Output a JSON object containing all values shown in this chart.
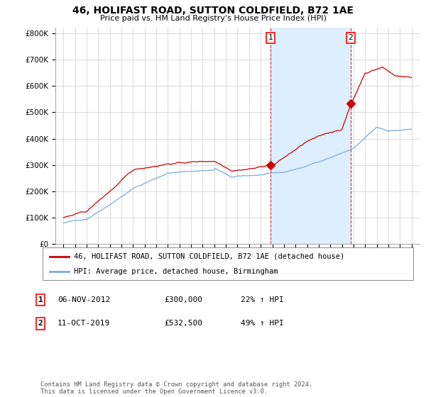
{
  "title": "46, HOLIFAST ROAD, SUTTON COLDFIELD, B72 1AE",
  "subtitle": "Price paid vs. HM Land Registry's House Price Index (HPI)",
  "legend_line1": "46, HOLIFAST ROAD, SUTTON COLDFIELD, B72 1AE (detached house)",
  "legend_line2": "HPI: Average price, detached house, Birmingham",
  "annotation1_label": "1",
  "annotation1_date": "06-NOV-2012",
  "annotation1_price": "£300,000",
  "annotation1_hpi": "22% ↑ HPI",
  "annotation1_value": 300000,
  "annotation1_year": 2012.833,
  "annotation2_label": "2",
  "annotation2_date": "11-OCT-2019",
  "annotation2_price": "£532,500",
  "annotation2_hpi": "49% ↑ HPI",
  "annotation2_value": 532500,
  "annotation2_year": 2019.75,
  "ylim": [
    0,
    820000
  ],
  "yticks": [
    0,
    100000,
    200000,
    300000,
    400000,
    500000,
    600000,
    700000,
    800000
  ],
  "background_color": "#ffffff",
  "plot_bg_color": "#ffffff",
  "grid_color": "#cccccc",
  "house_color": "#cc0000",
  "hpi_color": "#7aaadd",
  "span_color": "#ddeeff",
  "vline_color": "#cc0000",
  "footnote": "Contains HM Land Registry data © Crown copyright and database right 2024.\nThis data is licensed under the Open Government Licence v3.0.",
  "start_year": 1995,
  "end_year": 2025
}
